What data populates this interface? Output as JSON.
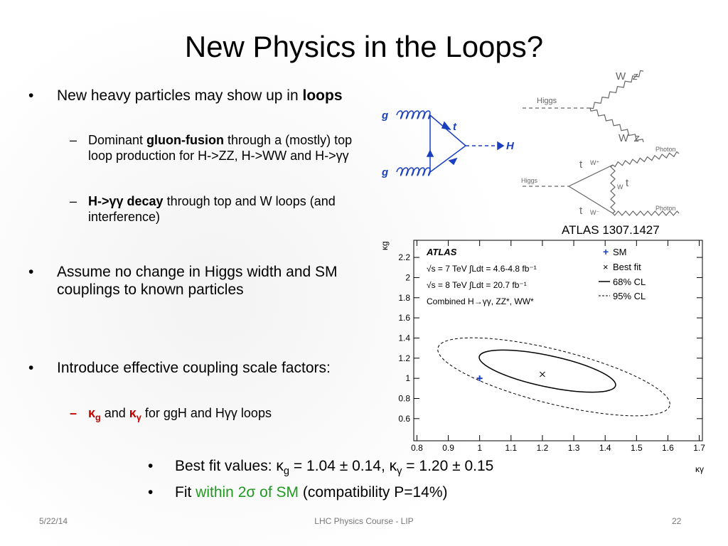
{
  "title": "New Physics in the Loops?",
  "bullets": [
    {
      "runs": [
        "New heavy particles may show up in ",
        "loops"
      ],
      "sub": [
        {
          "runs": [
            "Dominant ",
            "gluon-fusion",
            " through a (mostly) top loop production for H->ZZ, H->WW and H->γγ"
          ]
        },
        {
          "runs": [
            "H->γγ decay",
            " through top and W loops (and interference)"
          ]
        }
      ]
    },
    {
      "runs": [
        "Assume no change in Higgs width and SM couplings to known particles"
      ]
    },
    {
      "runs": [
        "Introduce effective coupling scale factors:"
      ],
      "sub": [
        {
          "runs": [
            "κ",
            "g",
            " and ",
            "κ",
            "γ",
            " for ggH and Hγγ loops"
          ]
        }
      ]
    }
  ],
  "bottom_bullets": [
    {
      "runs": [
        "Best fit values: κ",
        "g",
        " = 1.04 ± 0.14, κ",
        "γ",
        " = 1.20 ± 0.15"
      ]
    },
    {
      "runs": [
        "Fit ",
        "within 2σ of SM",
        " (compatibility P=14%)"
      ]
    }
  ],
  "diagram_ggH": {
    "g1": "g",
    "g2": "g",
    "t": "t",
    "H": "H"
  },
  "diagram_HVV": {
    "higgs": "Higgs",
    "w1": "W",
    "z1": "z",
    "w2": "W",
    "z2": "z"
  },
  "diagram_Hgg": {
    "higgs": "Higgs",
    "t1": "t",
    "wplus": "W⁺",
    "wt": "W",
    "t2": "t",
    "t3": "t",
    "wminus": "W⁻",
    "photon1": "Photon",
    "photon2": "Photon"
  },
  "reference": "ATLAS 1307.1427",
  "plot": {
    "experiment": "ATLAS",
    "lines": [
      "√s = 7 TeV ∫Ldt = 4.6-4.8 fb⁻¹",
      "√s = 8 TeV ∫Ldt = 20.7 fb⁻¹",
      "Combined H→γγ, ZZ*, WW*"
    ],
    "legend": [
      "SM",
      "Best fit",
      "68% CL",
      "95% CL"
    ],
    "xlabel": "κγ",
    "ylabel": "κg",
    "xlim": [
      0.79,
      1.71
    ],
    "ylim": [
      0.38,
      2.37
    ],
    "xticks": [
      0.8,
      0.9,
      1,
      1.1,
      1.2,
      1.3,
      1.4,
      1.5,
      1.6,
      1.7
    ],
    "yticks": [
      0.6,
      0.8,
      1,
      1.2,
      1.4,
      1.6,
      1.8,
      2,
      2.2
    ],
    "sm_point": {
      "x": 1,
      "y": 1
    },
    "best_fit": {
      "x": 1.2,
      "y": 1.04
    }
  },
  "footer": {
    "date": "5/22/14",
    "center": "LHC Physics Course - LIP",
    "page": "22"
  }
}
